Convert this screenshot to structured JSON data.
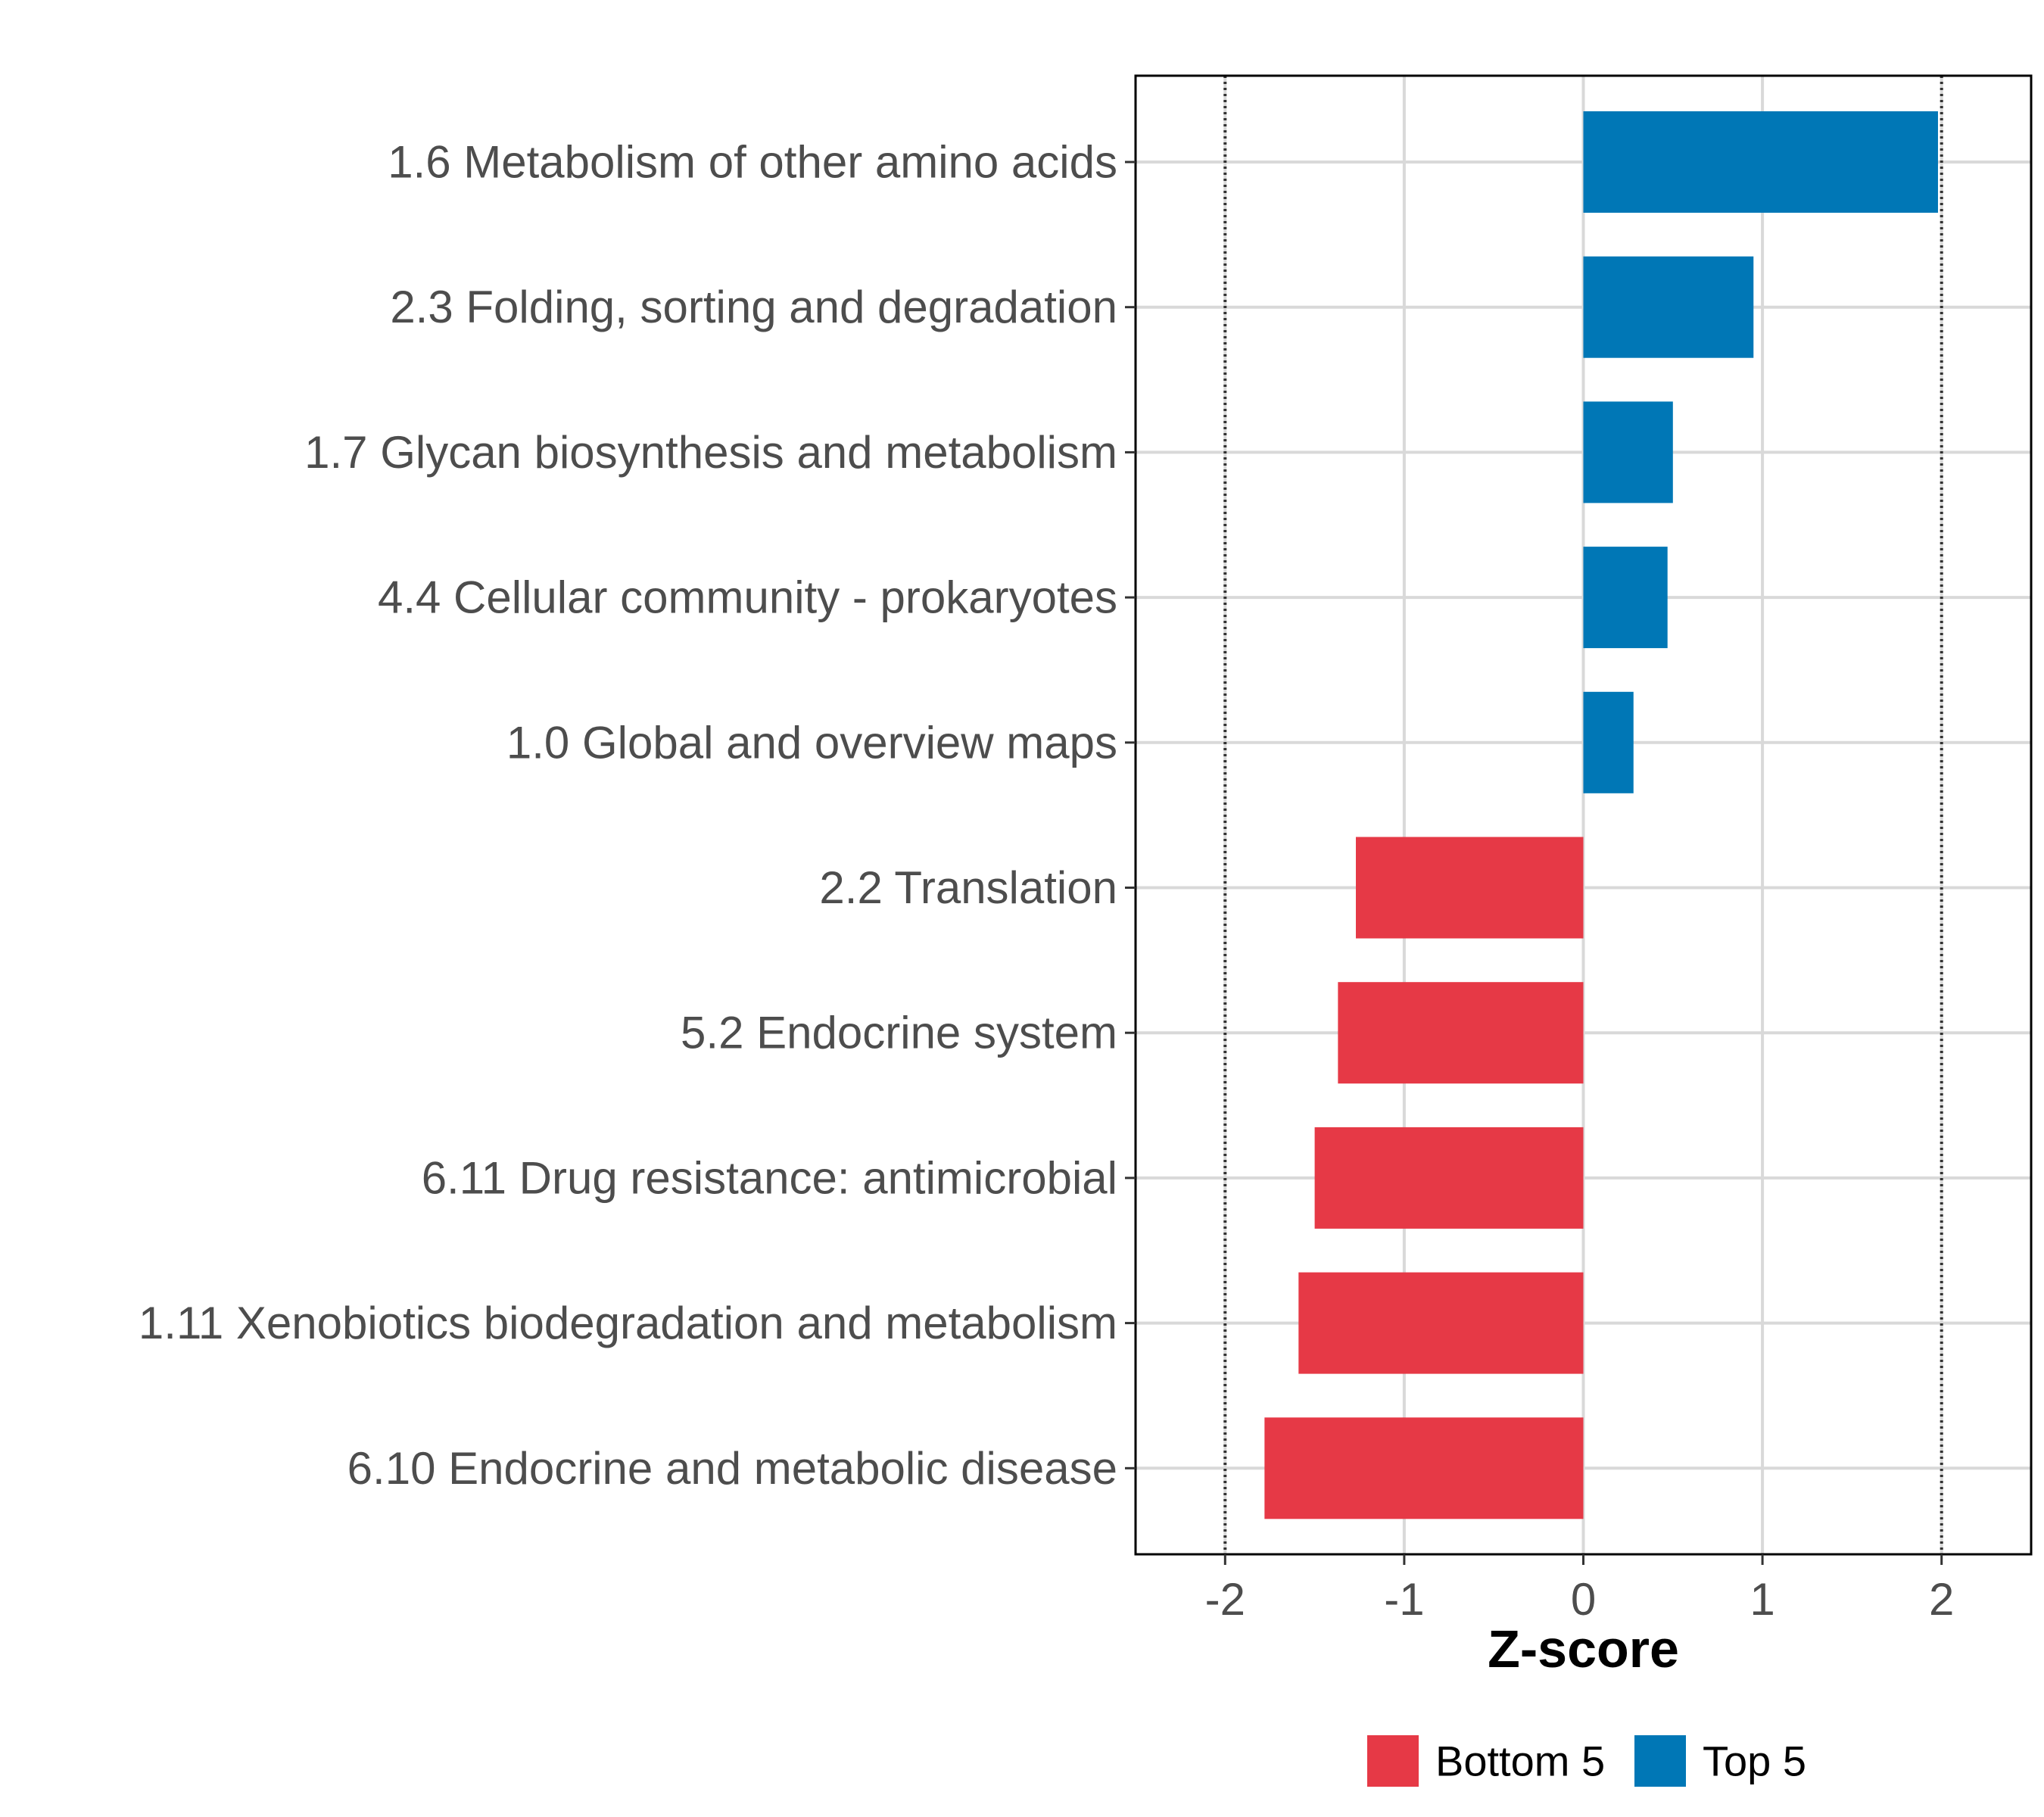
{
  "chart_data": {
    "type": "bar",
    "orientation": "horizontal",
    "categories": [
      "1.6 Metabolism of other amino acids",
      "2.3 Folding, sorting and degradation",
      "1.7 Glycan biosynthesis and metabolism",
      "4.4 Cellular community - prokaryotes",
      "1.0 Global and overview maps",
      "2.2 Translation",
      "5.2 Endocrine system",
      "6.11 Drug resistance: antimicrobial",
      "1.11 Xenobiotics biodegradation and metabolism",
      "6.10 Endocrine and metabolic disease"
    ],
    "values": [
      1.98,
      0.95,
      0.5,
      0.47,
      0.28,
      -1.27,
      -1.37,
      -1.5,
      -1.59,
      -1.78
    ],
    "groups": [
      "Top 5",
      "Top 5",
      "Top 5",
      "Top 5",
      "Top 5",
      "Bottom 5",
      "Bottom 5",
      "Bottom 5",
      "Bottom 5",
      "Bottom 5"
    ],
    "title": "",
    "xlabel": "Z-score",
    "ylabel": "",
    "xlim": [
      -2.5,
      2.5
    ],
    "xticks": [
      "-2",
      "-1",
      "0",
      "1",
      "2"
    ],
    "xtick_values": [
      -2,
      -1,
      0,
      1,
      2
    ],
    "reference_lines": [
      -2,
      2
    ],
    "grid": true,
    "legend": {
      "position": "bottom",
      "items": [
        {
          "label": "Bottom 5",
          "color": "#e63946"
        },
        {
          "label": "Top 5",
          "color": "#0077b6"
        }
      ]
    },
    "colors": {
      "Top 5": "#0077b6",
      "Bottom 5": "#e63946"
    }
  }
}
